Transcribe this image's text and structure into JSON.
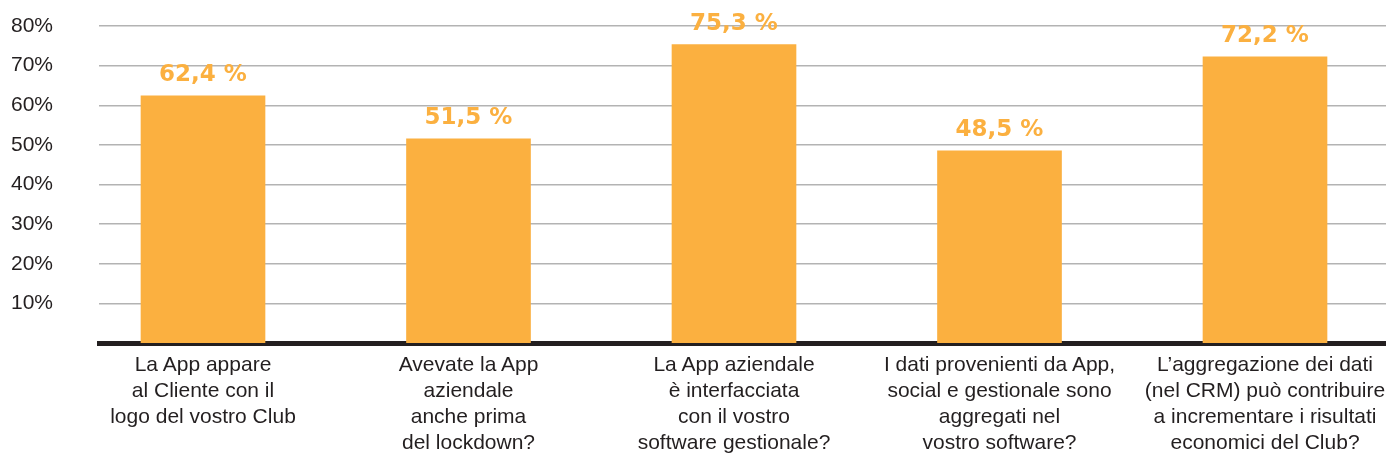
{
  "chart_data": {
    "type": "bar",
    "categories": [
      "La App appare\nal Cliente con il\nlogo del vostro Club",
      "Avevate la App\naziendale\nanche prima\ndel lockdown?",
      "La App aziendale\nè interfacciata\ncon il vostro\nsoftware gestionale?",
      "I dati provenienti da App,\nsocial e gestionale sono\naggregati nel\nvostro software?",
      "L’aggregazione dei dati\n(nel CRM) può contribuire\na incrementare i risultati\neconomici del Club?"
    ],
    "values": [
      62.4,
      51.5,
      75.3,
      48.5,
      72.2
    ],
    "color": "#fbb040",
    "value_labels": [
      "62,4 %",
      "51,5 %",
      "75,3 %",
      "48,5 %",
      "72,2 %"
    ],
    "ylim": [
      0,
      80
    ],
    "yticks": [
      {
        "value": 10,
        "label": "10%"
      },
      {
        "value": 20,
        "label": "20%"
      },
      {
        "value": 30,
        "label": "30%"
      },
      {
        "value": 40,
        "label": "40%"
      },
      {
        "value": 50,
        "label": "50%"
      },
      {
        "value": 60,
        "label": "60%"
      },
      {
        "value": 70,
        "label": "70%"
      },
      {
        "value": 80,
        "label": "80%"
      }
    ],
    "grid": "y"
  }
}
